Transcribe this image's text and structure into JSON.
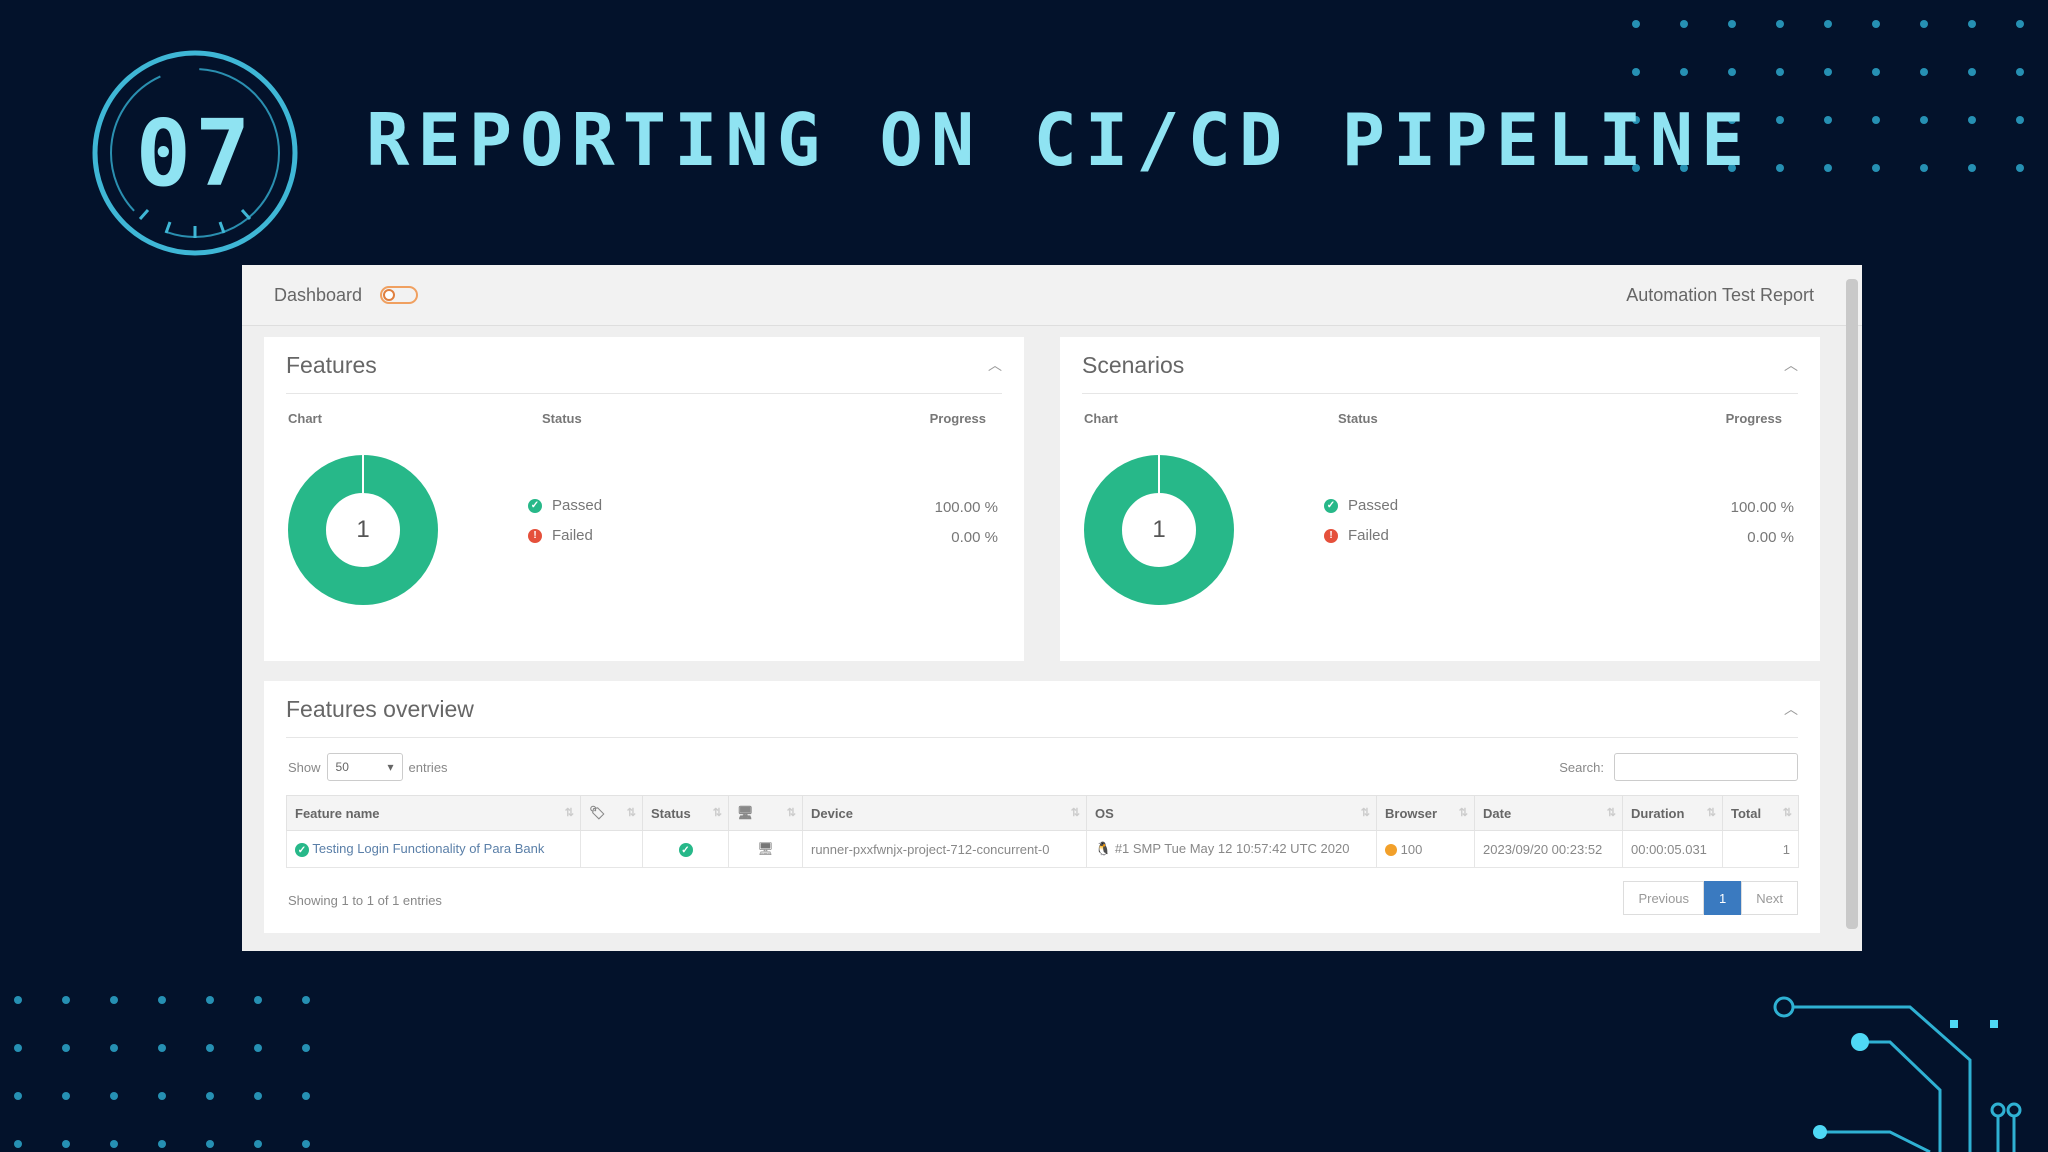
{
  "slide": {
    "number": "07",
    "title": "REPORTING ON CI/CD PIPELINE"
  },
  "colors": {
    "background": "#03122b",
    "accent": "#8fe3f2",
    "pass": "#27b889",
    "fail": "#e5503b",
    "pager_active": "#3a7ac0"
  },
  "report": {
    "dashboard_label": "Dashboard",
    "report_title": "Automation Test Report",
    "features": {
      "title": "Features",
      "col_chart": "Chart",
      "col_status": "Status",
      "col_progress": "Progress",
      "donut_center": "1",
      "passed_label": "Passed",
      "failed_label": "Failed",
      "passed_pct": "100.00 %",
      "failed_pct": "0.00 %"
    },
    "scenarios": {
      "title": "Scenarios",
      "col_chart": "Chart",
      "col_status": "Status",
      "col_progress": "Progress",
      "donut_center": "1",
      "passed_label": "Passed",
      "failed_label": "Failed",
      "passed_pct": "100.00 %",
      "failed_pct": "0.00 %"
    },
    "overview": {
      "title": "Features overview",
      "show_label": "Show",
      "entries_value": "50",
      "entries_label": "entries",
      "search_label": "Search:",
      "columns": [
        "Feature name",
        "",
        "Status",
        "",
        "Device",
        "OS",
        "Browser",
        "Date",
        "Duration",
        "Total"
      ],
      "row": {
        "feature_name": "Testing Login Functionality of Para Bank",
        "device": "runner-pxxfwnjx-project-712-concurrent-0",
        "os": "#1 SMP Tue May 12 10:57:42 UTC 2020",
        "browser_version": "100",
        "date": "2023/09/20 00:23:52",
        "duration": "00:00:05.031",
        "total": "1"
      },
      "footer": "Showing 1 to 1 of 1 entries",
      "pager": {
        "previous": "Previous",
        "page": "1",
        "next": "Next"
      }
    }
  }
}
